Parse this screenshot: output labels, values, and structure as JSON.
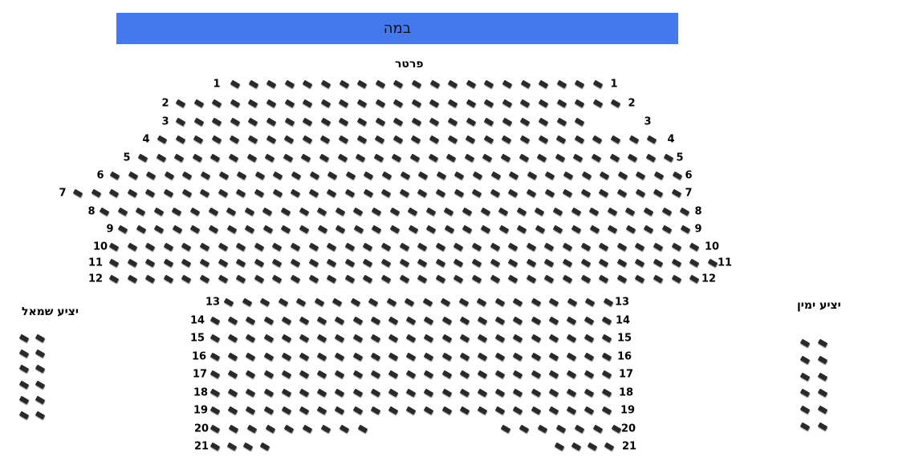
{
  "stage": {
    "label": "במה"
  },
  "sections": {
    "orchestra": {
      "label": "פרטר"
    },
    "left_balcony": {
      "label": "יציע שמאל",
      "columns": 2,
      "rows": 6
    },
    "right_balcony": {
      "label": "יציע ימין",
      "columns": 2,
      "rows": 6
    }
  },
  "rows": [
    {
      "number": "1",
      "seats": [
        21
      ]
    },
    {
      "number": "2",
      "seats": [
        25
      ]
    },
    {
      "number": "3",
      "seats": [
        23
      ]
    },
    {
      "number": "4",
      "seats": [
        28
      ]
    },
    {
      "number": "5",
      "seats": [
        30
      ]
    },
    {
      "number": "6",
      "seats": [
        32
      ]
    },
    {
      "number": "7",
      "seats": [
        34
      ]
    },
    {
      "number": "8",
      "seats": [
        33
      ]
    },
    {
      "number": "9",
      "seats": [
        32
      ]
    },
    {
      "number": "10",
      "seats": [
        33
      ]
    },
    {
      "number": "11",
      "seats": [
        34
      ]
    },
    {
      "number": "12",
      "seats": [
        33
      ]
    },
    {
      "number": "13",
      "seats": [
        22
      ]
    },
    {
      "number": "14",
      "seats": [
        23
      ]
    },
    {
      "number": "15",
      "seats": [
        23
      ]
    },
    {
      "number": "16",
      "seats": [
        23
      ]
    },
    {
      "number": "17",
      "seats": [
        23
      ]
    },
    {
      "number": "18",
      "seats": [
        23
      ]
    },
    {
      "number": "19",
      "seats": [
        23
      ]
    },
    {
      "number": "20",
      "seats": [
        9,
        7
      ]
    },
    {
      "number": "21",
      "seats": [
        4,
        4
      ]
    }
  ],
  "colors": {
    "stage": "#4479ee",
    "seat": "#2a2a2a"
  }
}
